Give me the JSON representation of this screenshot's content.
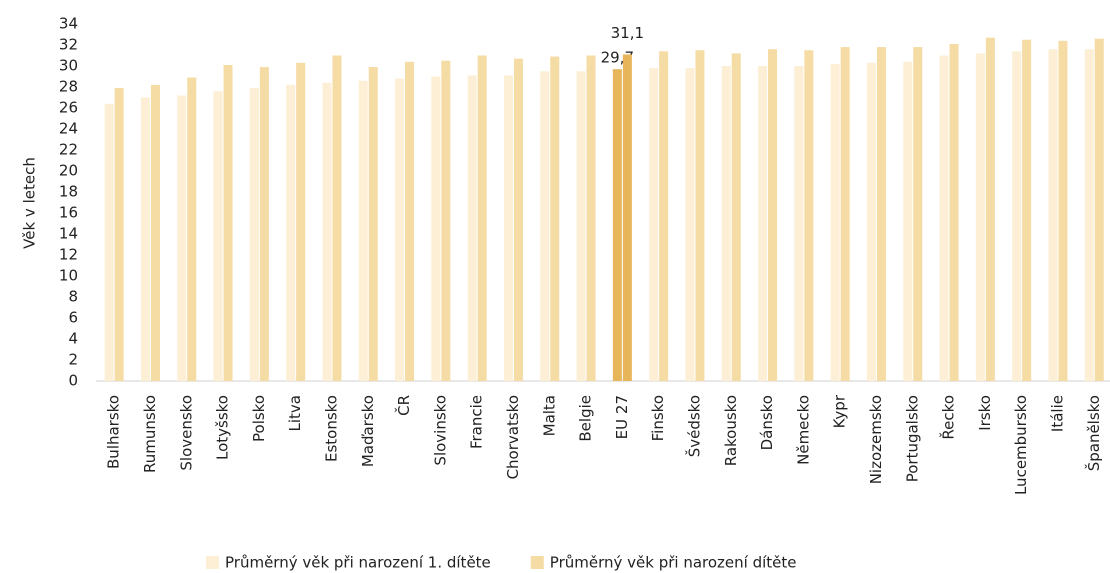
{
  "chart_data": {
    "type": "bar",
    "y_label": "Věk v letech",
    "categories": [
      "Bulharsko",
      "Rumunsko",
      "Slovensko",
      "Lotyšsko",
      "Polsko",
      "Litva",
      "Estonsko",
      "Maďarsko",
      "ČR",
      "Slovinsko",
      "Francie",
      "Chorvatsko",
      "Malta",
      "Belgie",
      "EU 27",
      "Finsko",
      "Švédsko",
      "Rakousko",
      "Dánsko",
      "Německo",
      "Kypr",
      "Nizozemsko",
      "Portugalsko",
      "Řecko",
      "Irsko",
      "Lucembursko",
      "Itálie",
      "Španělsko"
    ],
    "series": [
      {
        "name": "Průměrný věk při narození 1. dítěte",
        "color": "#fcefd6",
        "colors": [
          "#fcefd6",
          "#fcefd6",
          "#fcefd6",
          "#fcefd6",
          "#fcefd6",
          "#fcefd6",
          "#fcefd6",
          "#fcefd6",
          "#fcefd6",
          "#fcefd6",
          "#fcefd6",
          "#fcefd6",
          "#fcefd6",
          "#fcefd6",
          "#e8b65a",
          "#fcefd6",
          "#fcefd6",
          "#fcefd6",
          "#fcefd6",
          "#fcefd6",
          "#fcefd6",
          "#fcefd6",
          "#fcefd6",
          "#fcefd6",
          "#fcefd6",
          "#fcefd6",
          "#fcefd6",
          "#fcefd6"
        ],
        "values": [
          26.4,
          27.0,
          27.2,
          27.6,
          27.9,
          28.2,
          28.4,
          28.6,
          28.8,
          29.0,
          29.1,
          29.1,
          29.5,
          29.5,
          29.7,
          29.8,
          29.8,
          30.0,
          30.0,
          30.0,
          30.2,
          30.3,
          30.4,
          31.0,
          31.2,
          31.4,
          31.6,
          31.6
        ],
        "value_labels": [
          null,
          null,
          null,
          null,
          null,
          null,
          null,
          null,
          null,
          null,
          null,
          null,
          null,
          null,
          "29,7",
          null,
          null,
          null,
          null,
          null,
          null,
          null,
          null,
          null,
          null,
          null,
          null,
          null
        ]
      },
      {
        "name": "Průměrný věk při narození dítěte",
        "color": "#f5dba4",
        "colors": [
          "#f5dba4",
          "#f5dba4",
          "#f5dba4",
          "#f5dba4",
          "#f5dba4",
          "#f5dba4",
          "#f5dba4",
          "#f5dba4",
          "#f5dba4",
          "#f5dba4",
          "#f5dba4",
          "#f5dba4",
          "#f5dba4",
          "#f5dba4",
          "#e8b65a",
          "#f5dba4",
          "#f5dba4",
          "#f5dba4",
          "#f5dba4",
          "#f5dba4",
          "#f5dba4",
          "#f5dba4",
          "#f5dba4",
          "#f5dba4",
          "#f5dba4",
          "#f5dba4",
          "#f5dba4",
          "#f5dba4"
        ],
        "values": [
          27.9,
          28.2,
          28.9,
          30.1,
          29.9,
          30.3,
          31.0,
          29.9,
          30.4,
          30.5,
          31.0,
          30.7,
          30.9,
          31.0,
          31.1,
          31.4,
          31.5,
          31.2,
          31.6,
          31.5,
          31.8,
          31.8,
          31.8,
          32.1,
          32.7,
          32.5,
          32.4,
          32.6
        ],
        "value_labels": [
          null,
          null,
          null,
          null,
          null,
          null,
          null,
          null,
          null,
          null,
          null,
          null,
          null,
          null,
          "31,1",
          null,
          null,
          null,
          null,
          null,
          null,
          null,
          null,
          null,
          null,
          null,
          null,
          null
        ]
      }
    ],
    "ylim": [
      0,
      34
    ],
    "yticks": [
      0,
      2,
      4,
      6,
      8,
      10,
      12,
      14,
      16,
      18,
      20,
      22,
      24,
      26,
      28,
      30,
      32,
      34
    ],
    "grid": false,
    "legend": "bottom"
  }
}
